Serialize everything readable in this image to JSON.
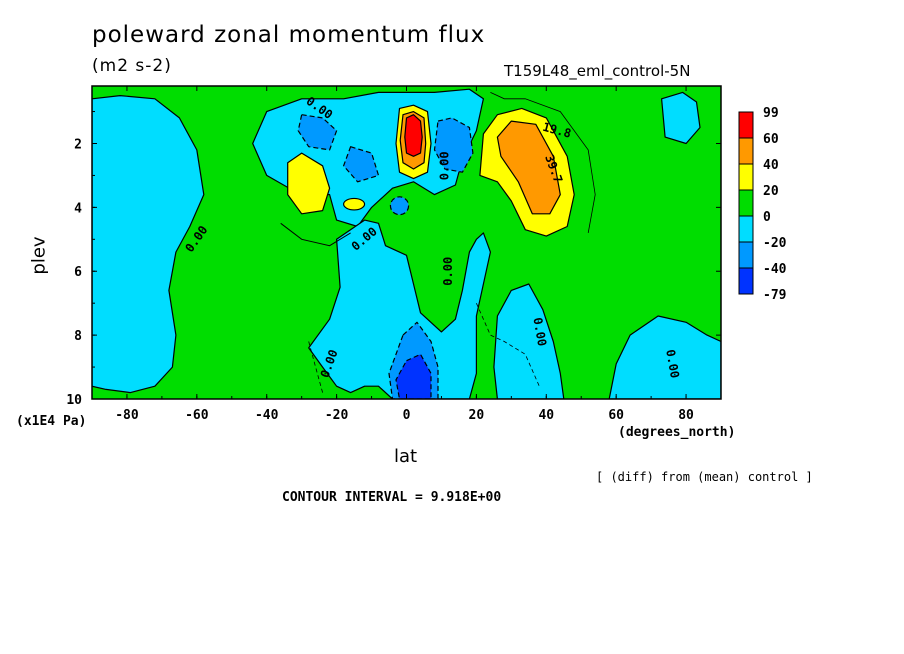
{
  "chart_data": {
    "type": "heatmap",
    "title": "poleward zonal momentum flux",
    "units": "(m2 s-2)",
    "run_id": "T159L48_eml_control-5N",
    "xlabel": "lat",
    "xlabel_units": "(degrees_north)",
    "ylabel": "plev",
    "ylabel_units": "(x1E4 Pa)",
    "xlim": [
      -90,
      90
    ],
    "ylim": [
      10,
      0.2
    ],
    "x_ticks": [
      -80,
      -60,
      -40,
      -20,
      0,
      20,
      40,
      60,
      80
    ],
    "x_tick_labels": [
      "-80",
      "-60",
      "-40",
      "-20",
      "0",
      "20",
      "40",
      "60",
      "80"
    ],
    "y_ticks": [
      2,
      4,
      6,
      8,
      10
    ],
    "y_tick_labels": [
      "2",
      "4",
      "6",
      "8",
      "10"
    ],
    "note": "[ (diff) from (mean) control ]",
    "contour_interval_text": "CONTOUR INTERVAL = 9.918E+00",
    "contour_labels": [
      "0.00",
      "0.00",
      "0.00",
      "0.00",
      "0.00",
      "0.00",
      "0.00",
      "0.00",
      "19.8",
      "39.7"
    ],
    "colorbar": {
      "labels": [
        "99",
        "60",
        "40",
        "20",
        "0",
        "-20",
        "-40",
        "-79"
      ],
      "colors": [
        "#ff0000",
        "#ff9900",
        "#ffff00",
        "#00dd00",
        "#00ddff",
        "#0099ff",
        "#0033ff"
      ]
    },
    "background_color": "#00dd00",
    "features": [
      {
        "type": "positive max",
        "lat": 2,
        "plev": 1.7,
        "value": 99
      },
      {
        "type": "positive region",
        "lat_range": [
          22,
          48
        ],
        "plev_range": [
          1.2,
          4.8
        ],
        "max": 50
      },
      {
        "type": "negative region",
        "lat_range": [
          -32,
          -8
        ],
        "plev_range": [
          1.0,
          3.2
        ],
        "min": -45
      },
      {
        "type": "negative region",
        "lat_range": [
          8,
          22
        ],
        "plev_range": [
          1.2,
          3.2
        ],
        "min": -50
      },
      {
        "type": "negative min",
        "lat": 4,
        "plev": 9.3,
        "value": -79
      },
      {
        "type": "positive region",
        "lat_range": [
          -35,
          -22
        ],
        "plev_range": [
          2.5,
          4.5
        ],
        "max": 25
      },
      {
        "type": "negative region",
        "lat_range": [
          -90,
          -55
        ],
        "plev_range": [
          0.5,
          9.8
        ],
        "min": -18
      },
      {
        "type": "negative region",
        "lat_range": [
          -20,
          10
        ],
        "plev_range": [
          4.0,
          10
        ],
        "min": -18
      },
      {
        "type": "negative region",
        "lat_range": [
          25,
          45
        ],
        "plev_range": [
          6.5,
          10
        ],
        "min": -18
      },
      {
        "type": "negative region",
        "lat_range": [
          60,
          90
        ],
        "plev_range": [
          7.0,
          10
        ],
        "min": -15
      }
    ]
  }
}
